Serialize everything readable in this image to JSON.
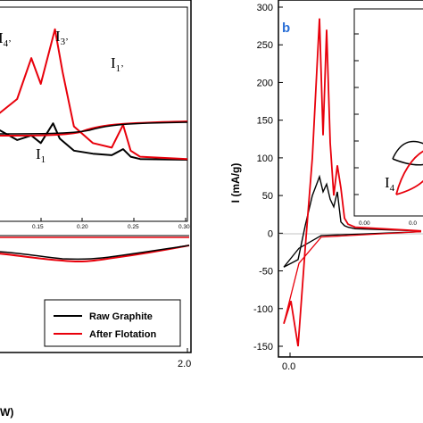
{
  "chart_data": [
    {
      "panel": "a",
      "type": "line",
      "x_ticks": [
        "2.0"
      ],
      "x_label_partial": "W)",
      "legend": [
        "Raw Graphite",
        "After Flotation"
      ],
      "series": [
        {
          "name": "Raw Graphite",
          "color": "#000000"
        },
        {
          "name": "After Flotation",
          "color": "#e8000b"
        }
      ],
      "inset": {
        "x_ticks": [
          "0.15",
          "0.20",
          "0.25",
          "0.30"
        ],
        "xlim": [
          0.1,
          0.3
        ],
        "annotations": [
          "I4'",
          "I3'",
          "I1'",
          "I1"
        ],
        "series": [
          {
            "name": "Raw Graphite",
            "x": [
              0.1,
              0.12,
              0.135,
              0.145,
              0.158,
              0.165,
              0.18,
              0.2,
              0.22,
              0.232,
              0.24,
              0.25,
              0.3
            ],
            "y": [
              5.0,
              4.3,
              4.6,
              4.1,
              5.4,
              4.4,
              3.6,
              3.4,
              3.3,
              3.7,
              3.2,
              3.05,
              3.0
            ]
          },
          {
            "name": "After Flotation",
            "x": [
              0.1,
              0.12,
              0.135,
              0.145,
              0.16,
              0.168,
              0.18,
              0.2,
              0.22,
              0.232,
              0.24,
              0.25,
              0.3
            ],
            "y": [
              6.0,
              7.0,
              9.7,
              8.0,
              11.6,
              8.8,
              5.2,
              4.1,
              3.8,
              5.3,
              3.6,
              3.2,
              3.05
            ]
          }
        ]
      }
    },
    {
      "panel": "b",
      "type": "line",
      "ylabel": "I (mA/g)",
      "ylim": [
        -150,
        300
      ],
      "y_ticks": [
        "300",
        "250",
        "200",
        "150",
        "100",
        "50",
        "0",
        "-50",
        "-100",
        "-150"
      ],
      "x_ticks": [
        "0.0"
      ],
      "series": [
        {
          "name": "Raw Graphite",
          "color": "#000000",
          "x": [
            0.0,
            0.1,
            0.2,
            0.3,
            0.4,
            0.5,
            0.55,
            0.6,
            0.65,
            0.7,
            0.75,
            0.8,
            0.85,
            0.9,
            1.0,
            2.0
          ],
          "y": [
            -45,
            -40,
            -35,
            10,
            50,
            75,
            55,
            65,
            45,
            35,
            55,
            15,
            10,
            8,
            6,
            3
          ]
        },
        {
          "name": "After Flotation",
          "color": "#e8000b",
          "x": [
            0.0,
            0.1,
            0.2,
            0.3,
            0.4,
            0.5,
            0.55,
            0.6,
            0.65,
            0.7,
            0.75,
            0.8,
            0.85,
            0.9,
            1.0,
            2.0
          ],
          "y": [
            -120,
            -90,
            -150,
            -20,
            100,
            285,
            130,
            270,
            120,
            50,
            90,
            60,
            20,
            12,
            8,
            3
          ]
        }
      ],
      "inset": {
        "x_ticks": [
          "0.00",
          "0.0"
        ],
        "annotations": [
          "I4"
        ]
      }
    }
  ]
}
